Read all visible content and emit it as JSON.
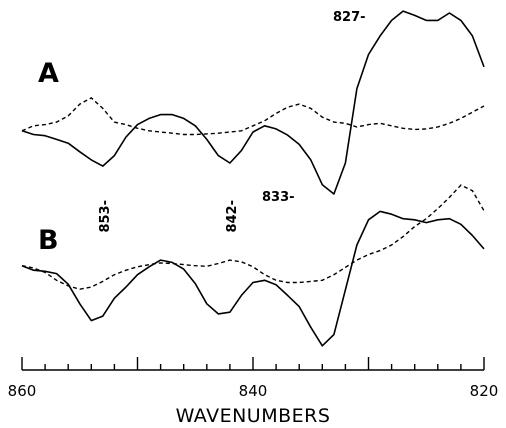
{
  "chart_data": {
    "type": "line",
    "xlabel": "WAVENUMBERS",
    "xlim": [
      860,
      820
    ],
    "x_ticks": [
      860,
      840,
      820
    ],
    "panels": [
      {
        "label": "A",
        "series": [
          {
            "style": "solid",
            "points": [
              [
                860,
                0.52
              ],
              [
                859,
                0.46
              ],
              [
                858,
                0.44
              ],
              [
                857,
                0.38
              ],
              [
                856,
                0.32
              ],
              [
                855,
                0.18
              ],
              [
                854,
                0.05
              ],
              [
                853,
                -0.05
              ],
              [
                852,
                0.12
              ],
              [
                851,
                0.42
              ],
              [
                850,
                0.62
              ],
              [
                849,
                0.72
              ],
              [
                848,
                0.78
              ],
              [
                847,
                0.78
              ],
              [
                846,
                0.72
              ],
              [
                845,
                0.6
              ],
              [
                844,
                0.38
              ],
              [
                843,
                0.12
              ],
              [
                842,
                0.0
              ],
              [
                841,
                0.2
              ],
              [
                840,
                0.5
              ],
              [
                839,
                0.6
              ],
              [
                838,
                0.55
              ],
              [
                837,
                0.45
              ],
              [
                836,
                0.3
              ],
              [
                835,
                0.05
              ],
              [
                834,
                -0.35
              ],
              [
                833,
                -0.5
              ],
              [
                832,
                0.0
              ],
              [
                831,
                1.2
              ],
              [
                830,
                1.75
              ],
              [
                829,
                2.05
              ],
              [
                828,
                2.3
              ],
              [
                827,
                2.45
              ],
              [
                826,
                2.38
              ],
              [
                825,
                2.3
              ],
              [
                824,
                2.3
              ],
              [
                823,
                2.42
              ],
              [
                822,
                2.3
              ],
              [
                821,
                2.05
              ],
              [
                820,
                1.55
              ]
            ]
          },
          {
            "style": "dashed",
            "points": [
              [
                860,
                0.52
              ],
              [
                859,
                0.6
              ],
              [
                858,
                0.62
              ],
              [
                857,
                0.66
              ],
              [
                856,
                0.76
              ],
              [
                855,
                0.95
              ],
              [
                854,
                1.05
              ],
              [
                853,
                0.88
              ],
              [
                852,
                0.66
              ],
              [
                851,
                0.62
              ],
              [
                850,
                0.56
              ],
              [
                849,
                0.52
              ],
              [
                848,
                0.5
              ],
              [
                847,
                0.48
              ],
              [
                846,
                0.46
              ],
              [
                845,
                0.46
              ],
              [
                844,
                0.47
              ],
              [
                843,
                0.48
              ],
              [
                842,
                0.5
              ],
              [
                841,
                0.52
              ],
              [
                840,
                0.6
              ],
              [
                839,
                0.68
              ],
              [
                838,
                0.8
              ],
              [
                837,
                0.9
              ],
              [
                836,
                0.95
              ],
              [
                835,
                0.88
              ],
              [
                834,
                0.74
              ],
              [
                833,
                0.66
              ],
              [
                832,
                0.64
              ],
              [
                831,
                0.58
              ],
              [
                830,
                0.62
              ],
              [
                829,
                0.64
              ],
              [
                828,
                0.6
              ],
              [
                827,
                0.56
              ],
              [
                826,
                0.54
              ],
              [
                825,
                0.55
              ],
              [
                824,
                0.58
              ],
              [
                823,
                0.64
              ],
              [
                822,
                0.72
              ],
              [
                821,
                0.82
              ],
              [
                820,
                0.92
              ]
            ]
          }
        ]
      },
      {
        "label": "B",
        "series": [
          {
            "style": "solid",
            "points": [
              [
                860,
                0.88
              ],
              [
                859,
                0.8
              ],
              [
                858,
                0.78
              ],
              [
                857,
                0.74
              ],
              [
                856,
                0.55
              ],
              [
                855,
                0.2
              ],
              [
                854,
                -0.1
              ],
              [
                853,
                -0.02
              ],
              [
                852,
                0.3
              ],
              [
                851,
                0.5
              ],
              [
                850,
                0.72
              ],
              [
                849,
                0.86
              ],
              [
                848,
                0.98
              ],
              [
                847,
                0.94
              ],
              [
                846,
                0.82
              ],
              [
                845,
                0.56
              ],
              [
                844,
                0.2
              ],
              [
                843,
                0.02
              ],
              [
                842,
                0.05
              ],
              [
                841,
                0.35
              ],
              [
                840,
                0.58
              ],
              [
                839,
                0.62
              ],
              [
                838,
                0.54
              ],
              [
                837,
                0.35
              ],
              [
                836,
                0.15
              ],
              [
                835,
                -0.22
              ],
              [
                834,
                -0.55
              ],
              [
                833,
                -0.35
              ],
              [
                832,
                0.45
              ],
              [
                831,
                1.25
              ],
              [
                830,
                1.7
              ],
              [
                829,
                1.85
              ],
              [
                828,
                1.8
              ],
              [
                827,
                1.72
              ],
              [
                826,
                1.7
              ],
              [
                825,
                1.65
              ],
              [
                824,
                1.7
              ],
              [
                823,
                1.72
              ],
              [
                822,
                1.62
              ],
              [
                821,
                1.42
              ],
              [
                820,
                1.18
              ]
            ]
          },
          {
            "style": "dashed",
            "points": [
              [
                860,
                0.88
              ],
              [
                859,
                0.84
              ],
              [
                858,
                0.76
              ],
              [
                857,
                0.62
              ],
              [
                856,
                0.52
              ],
              [
                855,
                0.46
              ],
              [
                854,
                0.5
              ],
              [
                853,
                0.6
              ],
              [
                852,
                0.72
              ],
              [
                851,
                0.8
              ],
              [
                850,
                0.86
              ],
              [
                849,
                0.9
              ],
              [
                848,
                0.93
              ],
              [
                847,
                0.92
              ],
              [
                846,
                0.9
              ],
              [
                845,
                0.88
              ],
              [
                844,
                0.87
              ],
              [
                843,
                0.92
              ],
              [
                842,
                0.98
              ],
              [
                841,
                0.95
              ],
              [
                840,
                0.86
              ],
              [
                839,
                0.72
              ],
              [
                838,
                0.62
              ],
              [
                837,
                0.58
              ],
              [
                836,
                0.58
              ],
              [
                835,
                0.6
              ],
              [
                834,
                0.62
              ],
              [
                833,
                0.72
              ],
              [
                832,
                0.85
              ],
              [
                831,
                0.98
              ],
              [
                830,
                1.08
              ],
              [
                829,
                1.15
              ],
              [
                828,
                1.25
              ],
              [
                827,
                1.4
              ],
              [
                826,
                1.58
              ],
              [
                825,
                1.72
              ],
              [
                824,
                1.9
              ],
              [
                823,
                2.1
              ],
              [
                822,
                2.32
              ],
              [
                821,
                2.22
              ],
              [
                820,
                1.86
              ]
            ]
          }
        ]
      }
    ],
    "annotations": [
      {
        "text": "827-",
        "x": 827,
        "panel": "A",
        "orientation": "horizontal"
      },
      {
        "text": "833-",
        "x": 833,
        "panel": "A",
        "orientation": "horizontal"
      },
      {
        "text": "853-",
        "x": 853,
        "panel": "A",
        "orientation": "vertical"
      },
      {
        "text": "842-",
        "x": 842,
        "panel": "A",
        "orientation": "vertical"
      }
    ]
  }
}
